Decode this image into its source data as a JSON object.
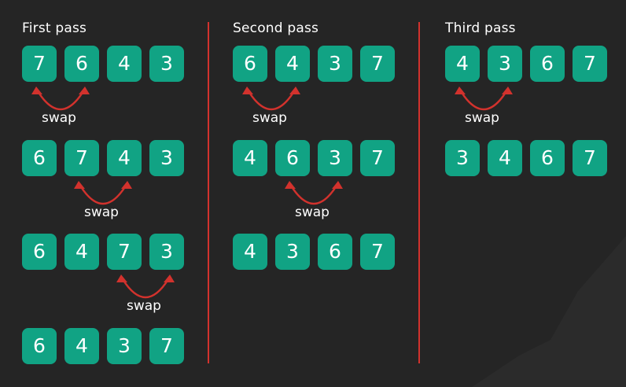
{
  "colors": {
    "background": "#252525",
    "cell": "#11a384",
    "arrow": "#d2322d",
    "text": "#ffffff",
    "divider": "#d2322d"
  },
  "passes": [
    {
      "title": "First pass",
      "rows": [
        {
          "values": [
            "7",
            "6",
            "4",
            "3"
          ],
          "swap": [
            0,
            1
          ],
          "swap_label": "swap"
        },
        {
          "values": [
            "6",
            "7",
            "4",
            "3"
          ],
          "swap": [
            1,
            2
          ],
          "swap_label": "swap"
        },
        {
          "values": [
            "6",
            "4",
            "7",
            "3"
          ],
          "swap": [
            2,
            3
          ],
          "swap_label": "swap"
        },
        {
          "values": [
            "6",
            "4",
            "3",
            "7"
          ]
        }
      ]
    },
    {
      "title": "Second pass",
      "rows": [
        {
          "values": [
            "6",
            "4",
            "3",
            "7"
          ],
          "swap": [
            0,
            1
          ],
          "swap_label": "swap"
        },
        {
          "values": [
            "4",
            "6",
            "3",
            "7"
          ],
          "swap": [
            1,
            2
          ],
          "swap_label": "swap"
        },
        {
          "values": [
            "4",
            "3",
            "6",
            "7"
          ]
        }
      ]
    },
    {
      "title": "Third pass",
      "rows": [
        {
          "values": [
            "4",
            "3",
            "6",
            "7"
          ],
          "swap": [
            0,
            1
          ],
          "swap_label": "swap"
        },
        {
          "values": [
            "3",
            "4",
            "6",
            "7"
          ]
        }
      ]
    }
  ]
}
